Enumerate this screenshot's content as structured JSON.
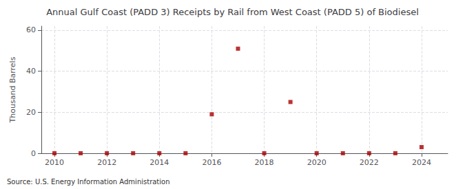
{
  "chart_data": {
    "type": "scatter",
    "title": "Annual Gulf Coast (PADD 3) Receipts by Rail from West Coast (PADD 5) of Biodiesel",
    "ylabel": "Thousand Barrels",
    "annotations": [
      "Source: U.S. Energy Information Administration"
    ],
    "x": [
      2010,
      2011,
      2012,
      2013,
      2014,
      2015,
      2016,
      2017,
      2018,
      2019,
      2020,
      2021,
      2022,
      2023,
      2024
    ],
    "values": [
      0,
      0,
      0,
      0,
      0,
      0,
      19,
      51,
      0,
      25,
      0,
      0,
      0,
      0,
      3
    ],
    "color": "#aa0000",
    "marker": "square",
    "xlim": [
      2009.5,
      2025.0
    ],
    "xticks": [
      2010,
      2012,
      2014,
      2016,
      2018,
      2020,
      2022,
      2024
    ],
    "ylim": [
      0,
      62
    ],
    "yticks": [
      0,
      20,
      40,
      60
    ],
    "grid": true
  }
}
